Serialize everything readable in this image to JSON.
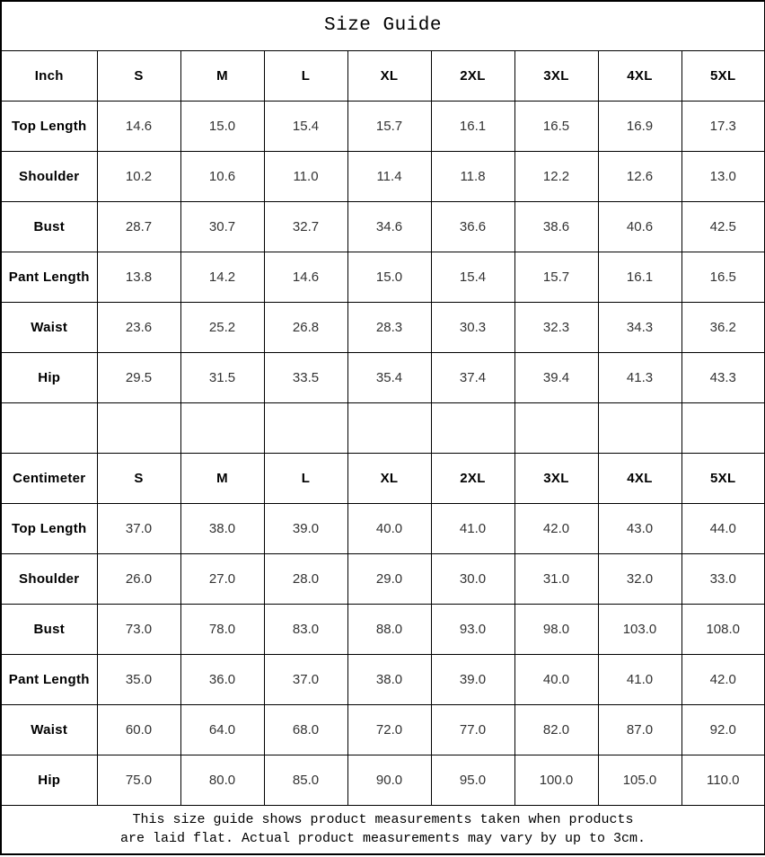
{
  "page": {
    "title": "Size Guide"
  },
  "columns": [
    "S",
    "M",
    "L",
    "XL",
    "2XL",
    "3XL",
    "4XL",
    "5XL"
  ],
  "sections": [
    {
      "unit_label": "Inch",
      "rows": [
        {
          "label": "Top Length",
          "values": [
            "14.6",
            "15.0",
            "15.4",
            "15.7",
            "16.1",
            "16.5",
            "16.9",
            "17.3"
          ]
        },
        {
          "label": "Shoulder",
          "values": [
            "10.2",
            "10.6",
            "11.0",
            "11.4",
            "11.8",
            "12.2",
            "12.6",
            "13.0"
          ]
        },
        {
          "label": "Bust",
          "values": [
            "28.7",
            "30.7",
            "32.7",
            "34.6",
            "36.6",
            "38.6",
            "40.6",
            "42.5"
          ]
        },
        {
          "label": "Pant Length",
          "values": [
            "13.8",
            "14.2",
            "14.6",
            "15.0",
            "15.4",
            "15.7",
            "16.1",
            "16.5"
          ]
        },
        {
          "label": "Waist",
          "values": [
            "23.6",
            "25.2",
            "26.8",
            "28.3",
            "30.3",
            "32.3",
            "34.3",
            "36.2"
          ]
        },
        {
          "label": "Hip",
          "values": [
            "29.5",
            "31.5",
            "33.5",
            "35.4",
            "37.4",
            "39.4",
            "41.3",
            "43.3"
          ]
        }
      ]
    },
    {
      "unit_label": "Centimeter",
      "rows": [
        {
          "label": "Top Length",
          "values": [
            "37.0",
            "38.0",
            "39.0",
            "40.0",
            "41.0",
            "42.0",
            "43.0",
            "44.0"
          ]
        },
        {
          "label": "Shoulder",
          "values": [
            "26.0",
            "27.0",
            "28.0",
            "29.0",
            "30.0",
            "31.0",
            "32.0",
            "33.0"
          ]
        },
        {
          "label": "Bust",
          "values": [
            "73.0",
            "78.0",
            "83.0",
            "88.0",
            "93.0",
            "98.0",
            "103.0",
            "108.0"
          ]
        },
        {
          "label": "Pant Length",
          "values": [
            "35.0",
            "36.0",
            "37.0",
            "38.0",
            "39.0",
            "40.0",
            "41.0",
            "42.0"
          ]
        },
        {
          "label": "Waist",
          "values": [
            "60.0",
            "64.0",
            "68.0",
            "72.0",
            "77.0",
            "82.0",
            "87.0",
            "92.0"
          ]
        },
        {
          "label": "Hip",
          "values": [
            "75.0",
            "80.0",
            "85.0",
            "90.0",
            "95.0",
            "100.0",
            "105.0",
            "110.0"
          ]
        }
      ]
    }
  ],
  "footer": {
    "line1": "This size guide shows product measurements taken when products",
    "line2": "are laid flat. Actual product measurements may vary by up to 3cm."
  }
}
